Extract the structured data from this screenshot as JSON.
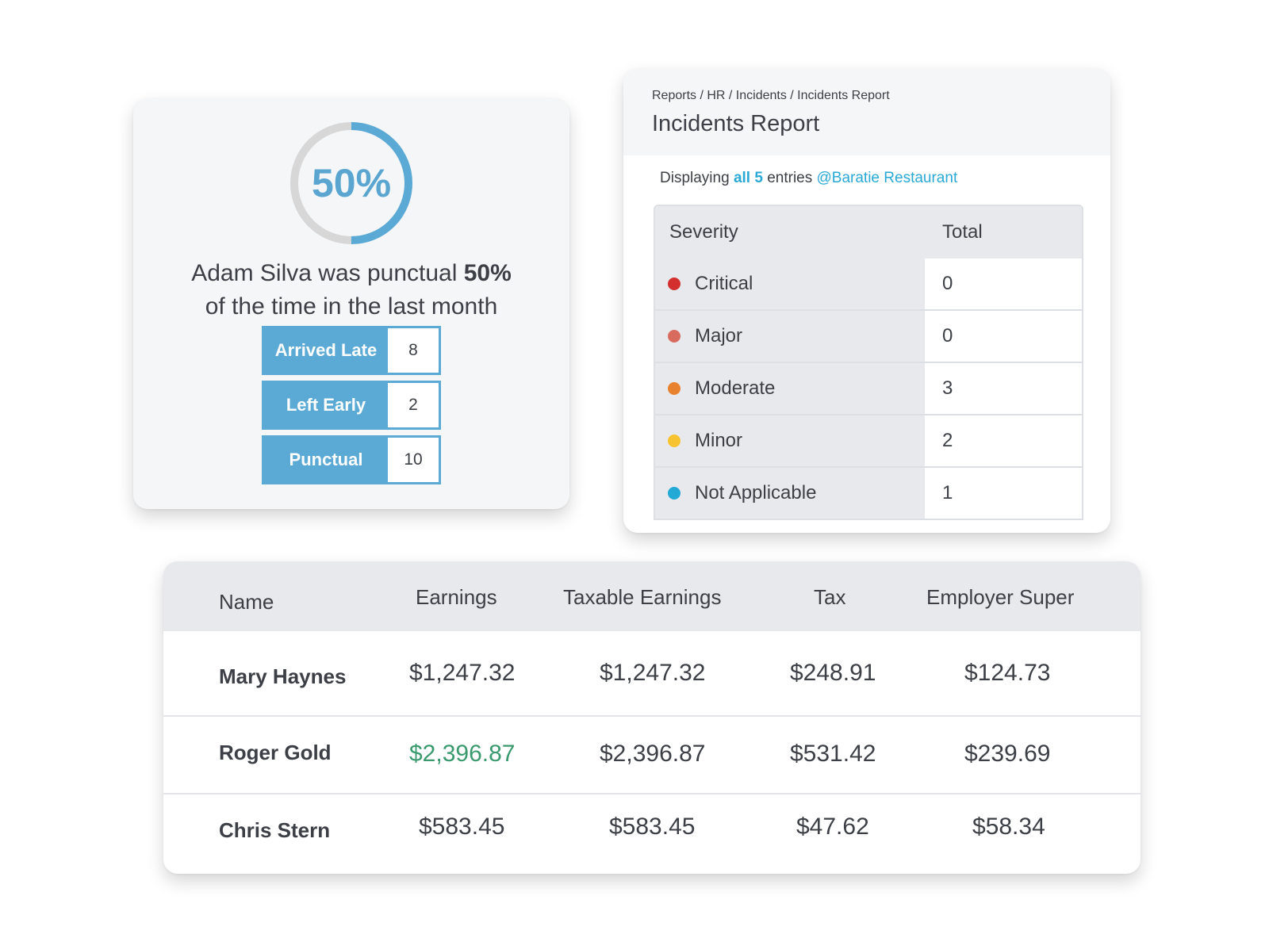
{
  "punctuality": {
    "progress_label": "50%",
    "progress_fraction": 0.5,
    "summary_prefix": "Adam Silva was punctual ",
    "summary_bold": "50%",
    "summary_suffix": "of the time in the last month",
    "stats": [
      {
        "label": "Arrived Late",
        "value": "8"
      },
      {
        "label": "Left Early",
        "value": "2"
      },
      {
        "label": "Punctual",
        "value": "10"
      }
    ],
    "colors": {
      "accent": "#5aaad5",
      "ring_track": "#d7d7d8"
    }
  },
  "incidents": {
    "breadcrumb": "Reports / HR / Incidents / Incidents Report",
    "title": "Incidents Report",
    "display": {
      "prefix": "Displaying ",
      "highlight": "all 5",
      "middle": " entries ",
      "location": "@Baratie Restaurant"
    },
    "columns": [
      "Severity",
      "Total"
    ],
    "rows": [
      {
        "severity": "Critical",
        "total": "0",
        "dot_color": "#d32f2f"
      },
      {
        "severity": "Major",
        "total": "0",
        "dot_color": "#d86b5e"
      },
      {
        "severity": "Moderate",
        "total": "3",
        "dot_color": "#e9822f"
      },
      {
        "severity": "Minor",
        "total": "2",
        "dot_color": "#f7c32e"
      },
      {
        "severity": "Not Applicable",
        "total": "1",
        "dot_color": "#22a9d6"
      }
    ]
  },
  "payroll": {
    "columns": [
      "Name",
      "Earnings",
      "Taxable Earnings",
      "Tax",
      "Employer Super"
    ],
    "rows": [
      {
        "name": "Mary Haynes",
        "earnings": "$1,247.32",
        "taxable": "$1,247.32",
        "tax": "$248.91",
        "super": "$124.73"
      },
      {
        "name": "Roger Gold",
        "earnings": "$2,396.87",
        "taxable": "$2,396.87",
        "tax": "$531.42",
        "super": "$239.69"
      },
      {
        "name": "Chris Stern",
        "earnings": "$583.45",
        "taxable": "$583.45",
        "tax": "$47.62",
        "super": "$58.34"
      }
    ],
    "highlight_color": "#3a9a6e"
  }
}
